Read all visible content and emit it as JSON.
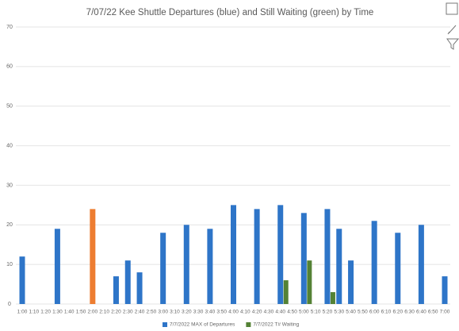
{
  "chart_data": {
    "type": "bar",
    "title": "7/07/22 Kee Shuttle Departures (blue) and Still Waiting (green) by Time",
    "categories": [
      "1:00",
      "1:10",
      "1:20",
      "1:30",
      "1:40",
      "1:50",
      "2:00",
      "2:10",
      "2:20",
      "2:30",
      "2:40",
      "2:50",
      "3:00",
      "3:10",
      "3:20",
      "3:30",
      "3:40",
      "3:50",
      "4:00",
      "4:10",
      "4:20",
      "4:30",
      "4:40",
      "4:50",
      "5:00",
      "5:10",
      "5:20",
      "5:30",
      "5:40",
      "5:50",
      "6:00",
      "6:10",
      "6:20",
      "6:30",
      "6:40",
      "6:50",
      "7:00"
    ],
    "series": [
      {
        "name": "7/7/2022 MAX of Departures",
        "color": "#2e75c8",
        "highlight_color": "#ed7d31",
        "highlight_index": 6,
        "values": [
          12,
          null,
          null,
          19,
          null,
          null,
          24,
          null,
          7,
          11,
          8,
          null,
          18,
          null,
          20,
          null,
          19,
          null,
          25,
          null,
          24,
          null,
          25,
          null,
          23,
          null,
          24,
          19,
          11,
          null,
          21,
          null,
          18,
          null,
          20,
          null,
          7
        ]
      },
      {
        "name": "7/7/2022 T# Waiting",
        "color": "#548235",
        "values": [
          null,
          null,
          null,
          null,
          null,
          null,
          null,
          null,
          null,
          null,
          null,
          null,
          null,
          null,
          null,
          null,
          null,
          null,
          null,
          null,
          null,
          null,
          6,
          null,
          11,
          null,
          3,
          null,
          null,
          null,
          null,
          null,
          null,
          null,
          null,
          null,
          null
        ]
      }
    ],
    "ylim": [
      0,
      70
    ],
    "yticks": [
      0,
      10,
      20,
      30,
      40,
      50,
      60,
      70
    ],
    "grid": true,
    "legend": "bottom"
  }
}
